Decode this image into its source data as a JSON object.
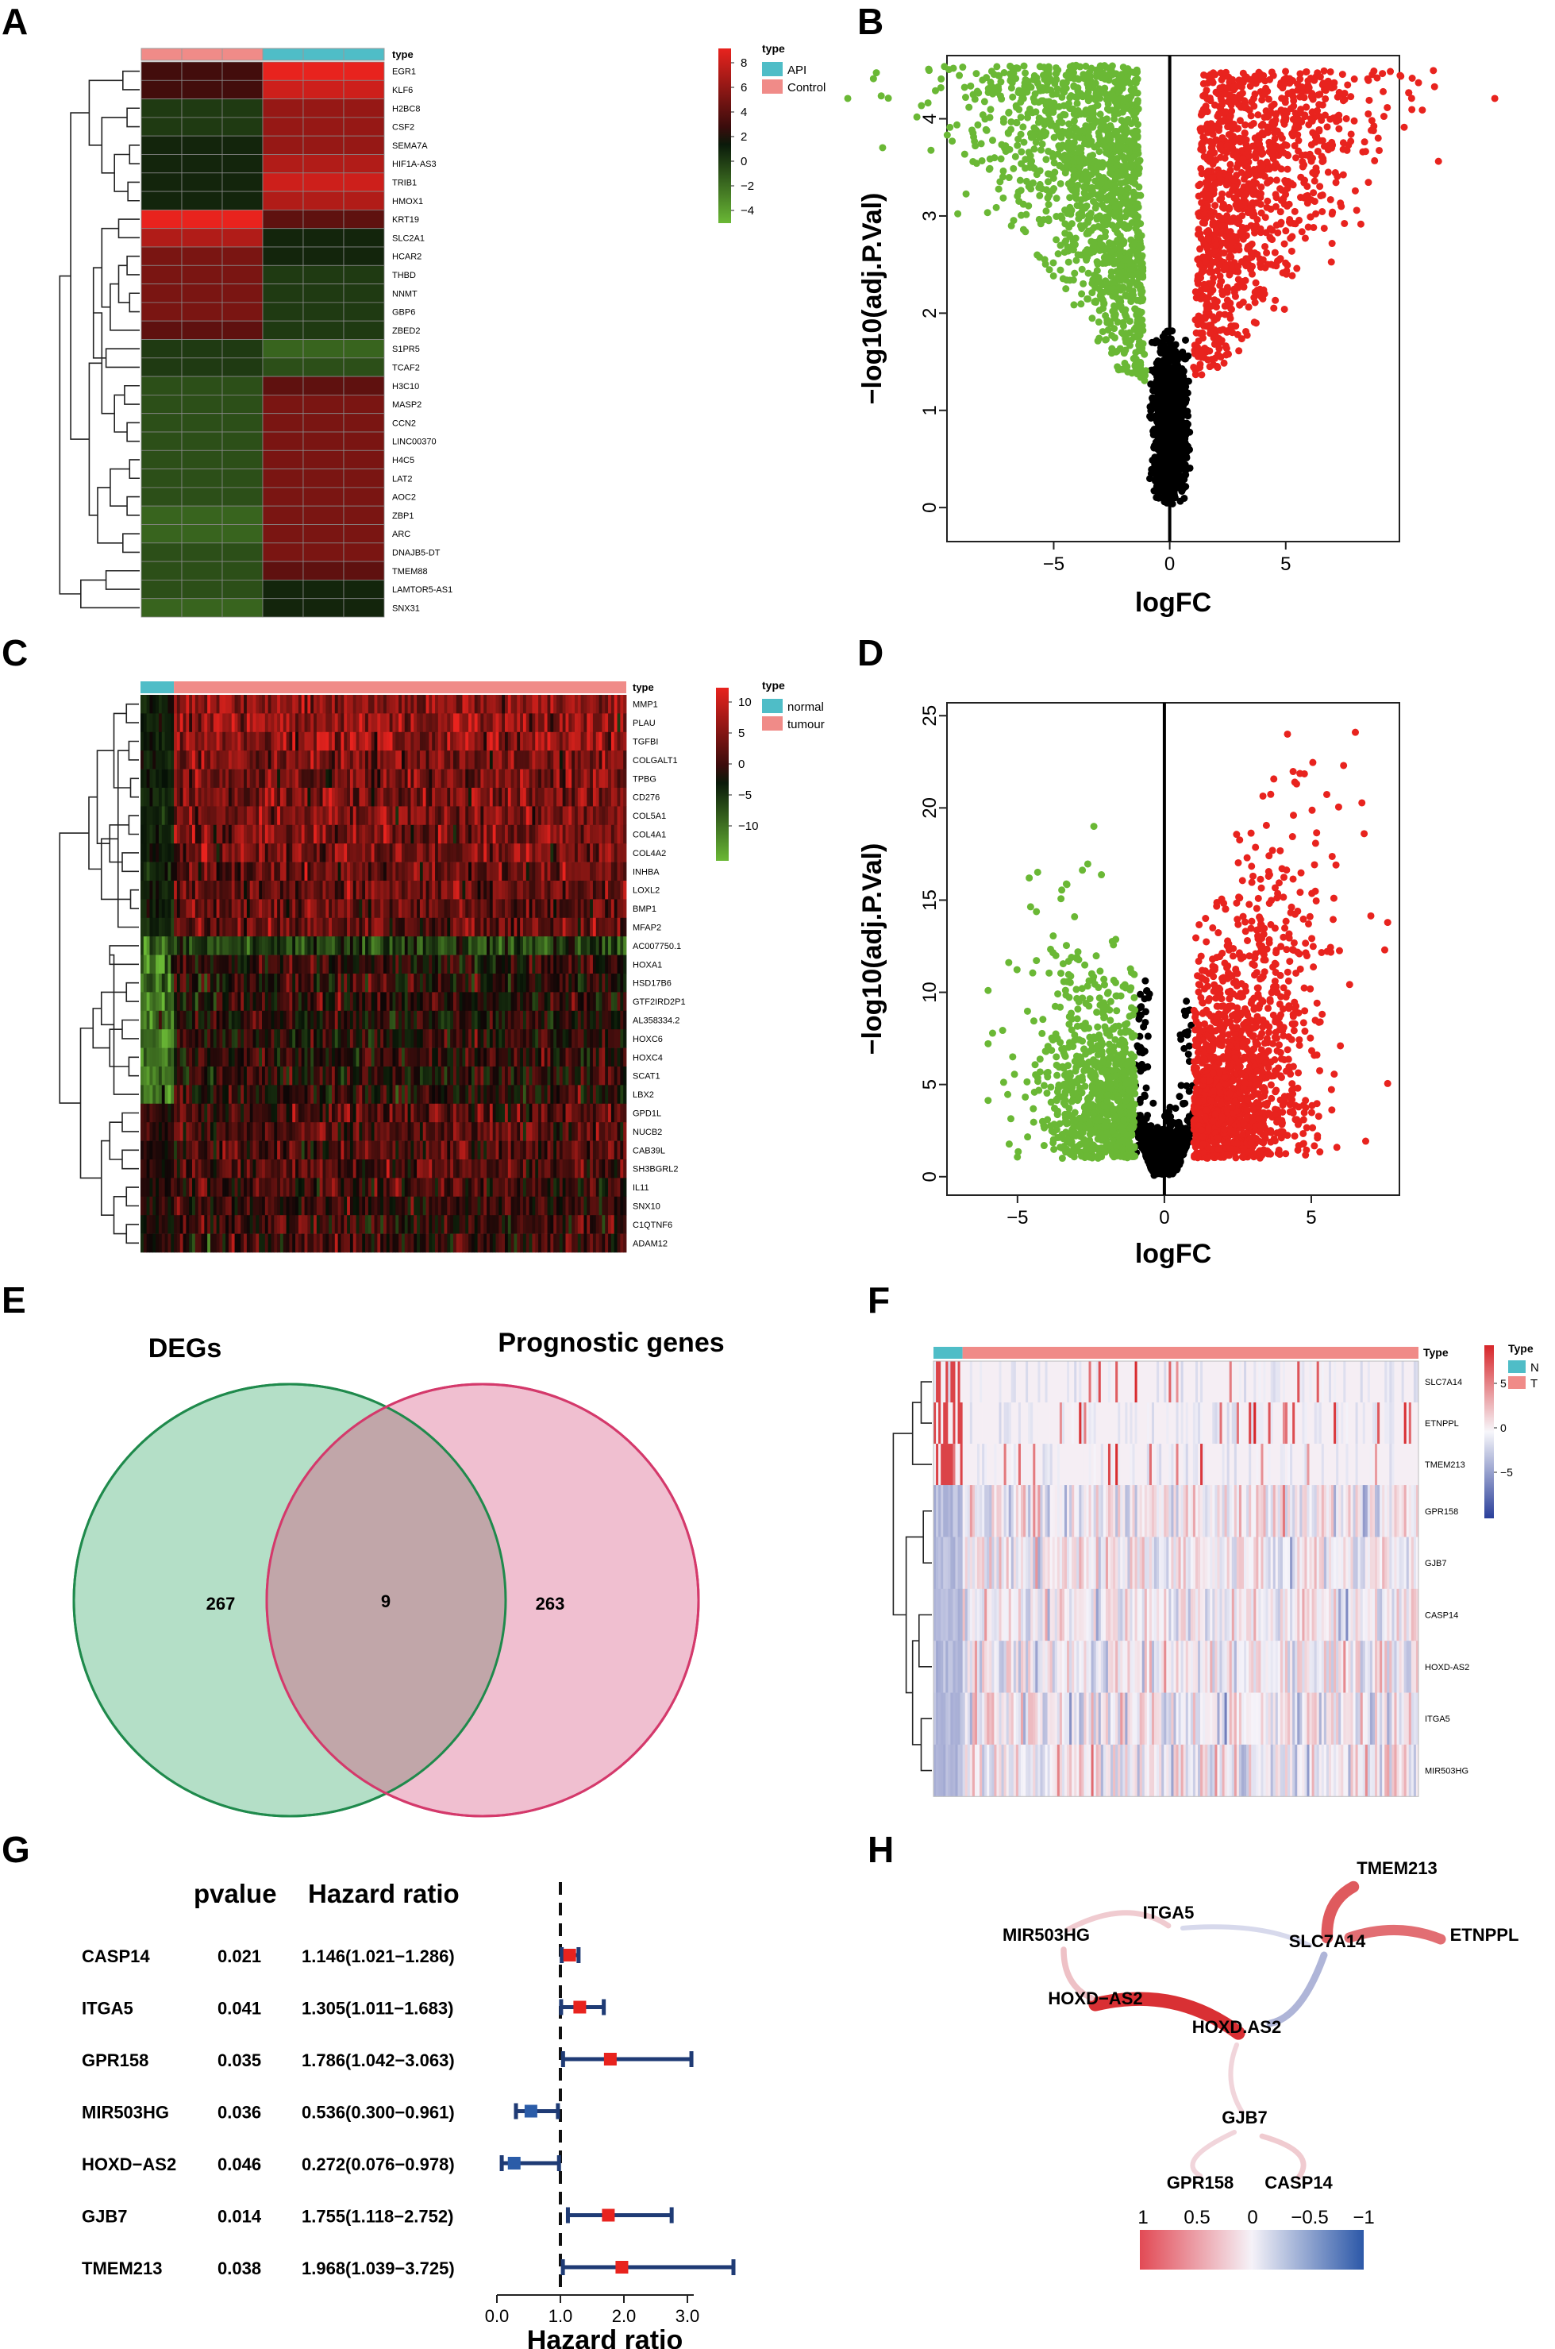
{
  "panels": {
    "A": {
      "label": "A",
      "genes": [
        "EGR1",
        "KLF6",
        "H2BC8",
        "CSF2",
        "SEMA7A",
        "HIF1A-AS3",
        "TRIB1",
        "HMOX1",
        "KRT19",
        "SLC2A1",
        "HCAR2",
        "THBD",
        "NNMT",
        "GBP6",
        "ZBED2",
        "S1PR5",
        "TCAF2",
        "H3C10",
        "MASP2",
        "CCN2",
        "LINC00370",
        "H4C5",
        "LAT2",
        "AOC2",
        "ZBP1",
        "ARC",
        "DNAJB5-DT",
        "TMEM88",
        "LAMTOR5-AS1",
        "SNX31"
      ],
      "type_header": "type",
      "legend_title": "type",
      "legend_items": [
        "API",
        "Control"
      ],
      "legend_colors": [
        "#4fbdc7",
        "#f08b88"
      ],
      "scale_ticks": [
        "8",
        "6",
        "4",
        "2",
        "0",
        "−2",
        "−4"
      ],
      "values": [
        [
          2,
          2,
          2,
          8,
          8,
          8
        ],
        [
          2,
          2,
          2,
          7,
          7,
          7
        ],
        [
          -2,
          -2,
          -2,
          5,
          5,
          5
        ],
        [
          -2,
          -2,
          -2,
          5,
          5,
          5
        ],
        [
          -1,
          -1,
          -1,
          5,
          5,
          5
        ],
        [
          -1,
          -1,
          -1,
          6,
          6,
          6
        ],
        [
          -1,
          -1,
          -1,
          7,
          7,
          7
        ],
        [
          -1,
          -1,
          -1,
          6,
          6,
          6
        ],
        [
          8,
          8,
          8,
          3,
          3,
          3
        ],
        [
          6,
          6,
          6,
          -1,
          -1,
          -1
        ],
        [
          4,
          4,
          4,
          -1,
          -1,
          -1
        ],
        [
          4,
          4,
          4,
          -2,
          -2,
          -2
        ],
        [
          4,
          4,
          4,
          -2,
          -2,
          -2
        ],
        [
          4,
          4,
          4,
          -2,
          -2,
          -2
        ],
        [
          3,
          3,
          3,
          -2,
          -2,
          -2
        ],
        [
          -2,
          -2,
          -2,
          -4,
          -4,
          -4
        ],
        [
          -2,
          -2,
          -2,
          -3,
          -3,
          -3
        ],
        [
          -3,
          -3,
          -3,
          3,
          3,
          3
        ],
        [
          -3,
          -3,
          -3,
          4,
          4,
          4
        ],
        [
          -3,
          -3,
          -3,
          4,
          4,
          4
        ],
        [
          -3,
          -3,
          -3,
          4,
          4,
          4
        ],
        [
          -3,
          -3,
          -3,
          4,
          4,
          4
        ],
        [
          -3,
          -3,
          -3,
          4,
          4,
          4
        ],
        [
          -3,
          -3,
          -3,
          4,
          4,
          4
        ],
        [
          -4,
          -4,
          -4,
          4,
          4,
          4
        ],
        [
          -4,
          -4,
          -4,
          4,
          4,
          4
        ],
        [
          -3,
          -3,
          -3,
          4,
          4,
          4
        ],
        [
          -3,
          -3,
          -3,
          3,
          3,
          3
        ],
        [
          -3,
          -3,
          -3,
          -1,
          -1,
          -1
        ],
        [
          -4,
          -4,
          -4,
          -1,
          -1,
          -1
        ]
      ]
    },
    "B": {
      "label": "B",
      "xlabel": "logFC",
      "ylabel": "−log10(adj.P.Val)",
      "xticks": [
        "−5",
        "0",
        "5"
      ],
      "yticks": [
        "0",
        "1",
        "2",
        "3",
        "4"
      ]
    },
    "C": {
      "label": "C",
      "genes": [
        "MMP1",
        "PLAU",
        "TGFBI",
        "COLGALT1",
        "TPBG",
        "CD276",
        "COL5A1",
        "COL4A1",
        "COL4A2",
        "INHBA",
        "LOXL2",
        "BMP1",
        "MFAP2",
        "AC007750.1",
        "HOXA1",
        "HSD17B6",
        "GTF2IRD2P1",
        "AL358334.2",
        "HOXC6",
        "HOXC4",
        "SCAT1",
        "LBX2",
        "GPD1L",
        "NUCB2",
        "CAB39L",
        "SH3BGRL2",
        "IL11",
        "SNX10",
        "C1QTNF6",
        "ADAM12"
      ],
      "type_header": "type",
      "legend_title": "type",
      "legend_items": [
        "normal",
        "tumour"
      ],
      "scale_ticks": [
        "10",
        "5",
        "0",
        "−5",
        "−10"
      ]
    },
    "D": {
      "label": "D",
      "xlabel": "logFC",
      "ylabel": "−log10(adj.P.Val)",
      "xticks": [
        "−5",
        "0",
        "5"
      ],
      "yticks": [
        "0",
        "5",
        "10",
        "15",
        "20",
        "25"
      ]
    },
    "E": {
      "label": "E",
      "left_title": "DEGs",
      "right_title": "Prognostic genes",
      "left_count": "267",
      "overlap_count": "9",
      "right_count": "263",
      "left_fill": "#b4dfc7",
      "right_fill": "#efbccd"
    },
    "F": {
      "label": "F",
      "genes": [
        "SLC7A14",
        "ETNPPL",
        "TMEM213",
        "GPR158",
        "GJB7",
        "CASP14",
        "HOXD-AS2",
        "ITGA5",
        "MIR503HG"
      ],
      "type_header": "Type",
      "legend_title": "Type",
      "legend_items": [
        "N",
        "T"
      ],
      "scale_ticks": [
        "5",
        "0",
        "−5"
      ]
    },
    "G": {
      "label": "G",
      "col_pvalue": "pvalue",
      "col_hr": "Hazard ratio",
      "xlabel": "Hazard ratio",
      "xticks": [
        "0.0",
        "1.0",
        "2.0",
        "3.0"
      ],
      "rows": [
        {
          "gene": "CASP14",
          "p": "0.021",
          "hr_text": "1.146(1.021−1.286)",
          "hr": 1.146,
          "lo": 1.021,
          "hi": 1.286
        },
        {
          "gene": "ITGA5",
          "p": "0.041",
          "hr_text": "1.305(1.011−1.683)",
          "hr": 1.305,
          "lo": 1.011,
          "hi": 1.683
        },
        {
          "gene": "GPR158",
          "p": "0.035",
          "hr_text": "1.786(1.042−3.063)",
          "hr": 1.786,
          "lo": 1.042,
          "hi": 3.063
        },
        {
          "gene": "MIR503HG",
          "p": "0.036",
          "hr_text": "0.536(0.300−0.961)",
          "hr": 0.536,
          "lo": 0.3,
          "hi": 0.961
        },
        {
          "gene": "HOXD−AS2",
          "p": "0.046",
          "hr_text": "0.272(0.076−0.978)",
          "hr": 0.272,
          "lo": 0.076,
          "hi": 0.978
        },
        {
          "gene": "GJB7",
          "p": "0.014",
          "hr_text": "1.755(1.118−2.752)",
          "hr": 1.755,
          "lo": 1.118,
          "hi": 2.752
        },
        {
          "gene": "TMEM213",
          "p": "0.038",
          "hr_text": "1.968(1.039−3.725)",
          "hr": 1.968,
          "lo": 1.039,
          "hi": 3.725
        }
      ]
    },
    "H": {
      "label": "H",
      "nodes": [
        "TMEM213",
        "ITGA5",
        "ETNPPL",
        "MIR503HG",
        "SLC7A14",
        "HOXD−AS2",
        "HOXD.AS2",
        "GJB7",
        "GPR158",
        "CASP14"
      ],
      "scale_ticks": [
        "1",
        "0.5",
        "0",
        "−0.5",
        "−1"
      ]
    }
  },
  "colors": {
    "red": "#e8231e",
    "green": "#6ab835",
    "teal": "#4fbdc7",
    "salmon": "#f08b88",
    "navy": "#1f3b75"
  }
}
